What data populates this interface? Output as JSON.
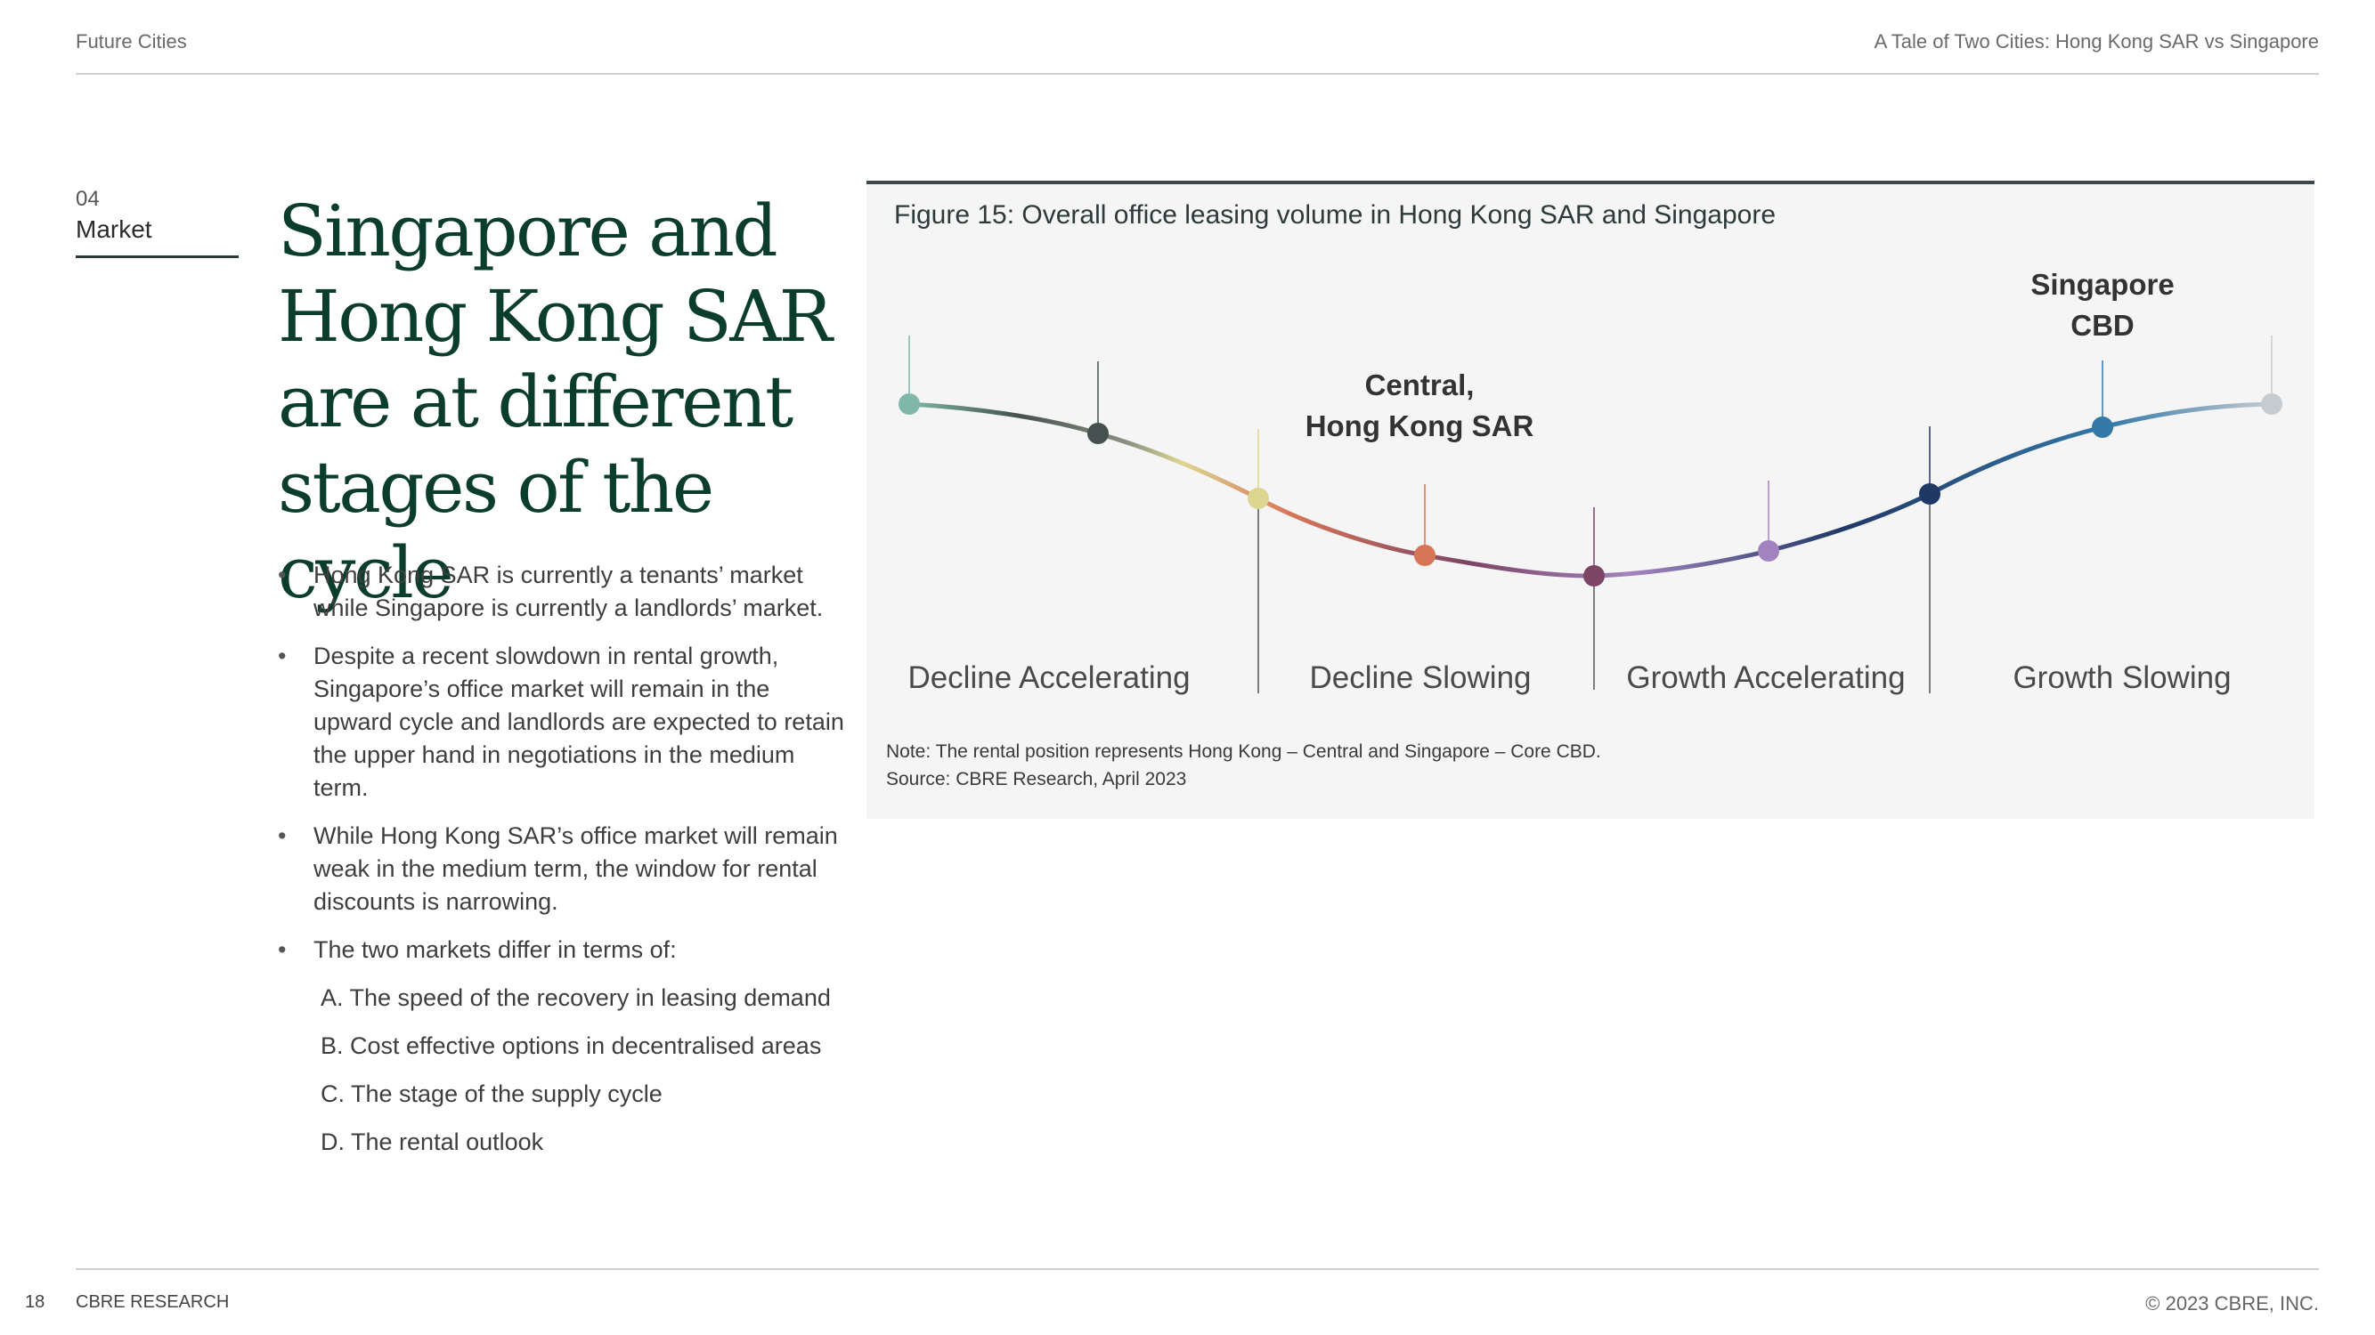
{
  "header": {
    "left": "Future Cities",
    "right": "A Tale of Two Cities: Hong Kong SAR vs Singapore"
  },
  "section": {
    "number": "04",
    "name": "Market"
  },
  "title_lines": [
    "Singapore and",
    "Hong Kong SAR",
    "are at different",
    "stages of the cycle"
  ],
  "bullets": [
    "Hong Kong SAR is currently a tenants’ market while Singapore is currently a landlords’ market.",
    "Despite a recent slowdown in rental growth, Singapore’s office market will remain in the upward cycle and landlords are expected to retain the upper hand in negotiations in the medium term.",
    "While Hong Kong SAR’s office market will remain weak in the medium term, the window for rental discounts is narrowing.",
    "The two markets differ in terms of:"
  ],
  "sub_items": [
    "A. The speed of the recovery in leasing demand",
    "B. Cost effective options in decentralised areas",
    "C. The stage of the supply cycle",
    "D. The rental outlook"
  ],
  "figure": {
    "title": "Figure 15: Overall office leasing volume in Hong Kong SAR and Singapore",
    "note": "Note: The rental position represents Hong Kong – Central and Singapore – Core CBD.",
    "source": "Source: CBRE Research, April 2023",
    "phases": [
      "Decline Accelerating",
      "Decline Slowing",
      "Growth Accelerating",
      "Growth Slowing"
    ],
    "callouts": {
      "hong_kong": [
        "Central,",
        "Hong Kong SAR"
      ],
      "singapore": [
        "Singapore",
        "CBD"
      ]
    },
    "point_colors": [
      "#7fb8a8",
      "#45514f",
      "#ddd691",
      "#d77657",
      "#7c4565",
      "#a383bf",
      "#1f3866",
      "#3479a8",
      "#c6cbcf"
    ]
  },
  "footer": {
    "page_number": "18",
    "left": "CBRE RESEARCH",
    "right": "© 2023 CBRE, INC."
  }
}
